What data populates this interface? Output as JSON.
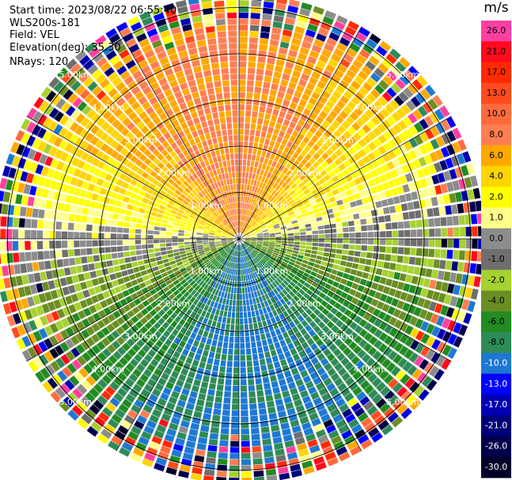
{
  "header": {
    "start_time": "Start time: 2023/08/22 06:55:40",
    "instrument": "WLS200s-181",
    "field": "Field: VEL",
    "elevation": "Elevation(deg): 35.30",
    "nrays": "NRays: 120"
  },
  "colorbar": {
    "title": "m/s",
    "bins": [
      {
        "label": "26.0",
        "color": "#ff3fa0"
      },
      {
        "label": "21.0",
        "color": "#ff0a1e"
      },
      {
        "label": "17.0",
        "color": "#ff2a00"
      },
      {
        "label": "13.0",
        "color": "#ff4b1e"
      },
      {
        "label": "10.0",
        "color": "#ff6a3c"
      },
      {
        "label": "8.0",
        "color": "#ff7e52"
      },
      {
        "label": "6.0",
        "color": "#ffa800"
      },
      {
        "label": "4.0",
        "color": "#ffd400"
      },
      {
        "label": "2.0",
        "color": "#ffff00"
      },
      {
        "label": "1.0",
        "color": "#ffff8c"
      },
      {
        "label": "0.0",
        "color": "#8c8c8c"
      },
      {
        "label": "-1.0",
        "color": "#6e6e6e"
      },
      {
        "label": "-2.0",
        "color": "#a6d130"
      },
      {
        "label": "-4.0",
        "color": "#6b8e23"
      },
      {
        "label": "-6.0",
        "color": "#228b22"
      },
      {
        "label": "-8.0",
        "color": "#2e8b57"
      },
      {
        "label": "-10.0",
        "color": "#1e78d2"
      },
      {
        "label": "-13.0",
        "color": "#0000ff"
      },
      {
        "label": "-17.0",
        "color": "#0000b4"
      },
      {
        "label": "-21.0",
        "color": "#000078"
      },
      {
        "label": "-26.0",
        "color": "#00004b"
      },
      {
        "label": "-30.0",
        "color": "#000028"
      }
    ]
  },
  "chart_data": {
    "type": "heatmap",
    "description_free": true,
    "range_ring_labels": [
      "1.00km",
      "2.00km",
      "3.00km",
      "4.00km",
      "5.00km"
    ],
    "range_rings_km": [
      1,
      2,
      3,
      4,
      5
    ],
    "max_range_km": 5.3,
    "nrays": 120,
    "azimuth_lines_deg": [
      0,
      30,
      60,
      90,
      120,
      150,
      180,
      210,
      240,
      270,
      300,
      330
    ]
  }
}
